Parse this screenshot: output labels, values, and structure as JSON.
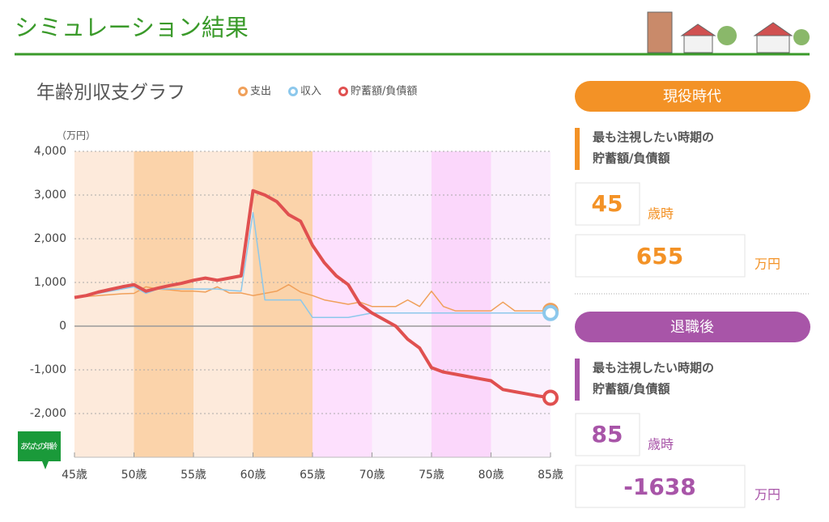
{
  "header": {
    "title": "シミュレーション結果"
  },
  "chart_data": {
    "type": "line",
    "title": "年齢別収支グラフ",
    "y_unit": "（万円）",
    "marker_label": "あなたの年齢",
    "x": [
      45,
      46,
      47,
      48,
      49,
      50,
      51,
      52,
      53,
      54,
      55,
      56,
      57,
      58,
      59,
      60,
      61,
      62,
      63,
      64,
      65,
      66,
      67,
      68,
      69,
      70,
      71,
      72,
      73,
      74,
      75,
      76,
      77,
      78,
      79,
      80,
      81,
      82,
      83,
      84,
      85
    ],
    "series": [
      {
        "name": "支出",
        "color": "#f0a05a",
        "width": 1.5,
        "values": [
          650,
          680,
          700,
          720,
          740,
          750,
          900,
          850,
          830,
          800,
          800,
          780,
          900,
          760,
          760,
          700,
          750,
          800,
          950,
          780,
          700,
          600,
          550,
          500,
          550,
          450,
          450,
          450,
          600,
          450,
          800,
          450,
          350,
          350,
          350,
          350,
          550,
          350,
          350,
          350,
          350
        ]
      },
      {
        "name": "収入",
        "color": "#8cc8ec",
        "width": 1.5,
        "values": [
          650,
          700,
          750,
          800,
          850,
          900,
          750,
          850,
          850,
          850,
          850,
          850,
          850,
          820,
          800,
          2600,
          600,
          600,
          600,
          600,
          200,
          200,
          200,
          200,
          250,
          300,
          300,
          300,
          300,
          300,
          300,
          300,
          300,
          300,
          300,
          300,
          300,
          300,
          300,
          300,
          300
        ]
      },
      {
        "name": "貯蓄額/負債額",
        "color": "#e05050",
        "width": 4,
        "values": [
          655,
          700,
          780,
          840,
          900,
          950,
          800,
          870,
          930,
          980,
          1050,
          1100,
          1050,
          1100,
          1150,
          3100,
          3000,
          2850,
          2550,
          2400,
          1850,
          1450,
          1150,
          950,
          500,
          300,
          150,
          0,
          -300,
          -500,
          -950,
          -1050,
          -1100,
          -1150,
          -1200,
          -1250,
          -1450,
          -1500,
          -1550,
          -1600,
          -1638
        ]
      }
    ],
    "xlim": [
      45,
      85
    ],
    "xticks": [
      {
        "value": 45,
        "label": "45歳"
      },
      {
        "value": 50,
        "label": "50歳"
      },
      {
        "value": 55,
        "label": "55歳"
      },
      {
        "value": 60,
        "label": "60歳"
      },
      {
        "value": 65,
        "label": "65歳"
      },
      {
        "value": 70,
        "label": "70歳"
      },
      {
        "value": 75,
        "label": "75歳"
      },
      {
        "value": 80,
        "label": "80歳"
      },
      {
        "value": 85,
        "label": "85歳"
      }
    ],
    "ylim": [
      -3000,
      4000
    ],
    "yticks": [
      {
        "value": 4000,
        "label": "4,000"
      },
      {
        "value": 3000,
        "label": "3,000"
      },
      {
        "value": 2000,
        "label": "2,000"
      },
      {
        "value": 1000,
        "label": "1,000"
      },
      0,
      {
        "value": -1000,
        "label": "-1,000"
      },
      {
        "value": -2000,
        "label": "-2,000"
      }
    ],
    "grid": true
  },
  "panels": [
    {
      "title": "現役時代",
      "color": "#f39226",
      "caption": [
        "最も注視したい時期の",
        "貯蓄額/負債額"
      ],
      "age": 45,
      "age_unit": "歳時",
      "amount": 655,
      "amount_unit": "万円"
    },
    {
      "title": "退職後",
      "color": "#a855a8",
      "caption": [
        "最も注視したい時期の",
        "貯蓄額/負債額"
      ],
      "age": 85,
      "age_unit": "歳時",
      "amount": -1638,
      "amount_unit": "万円"
    }
  ]
}
